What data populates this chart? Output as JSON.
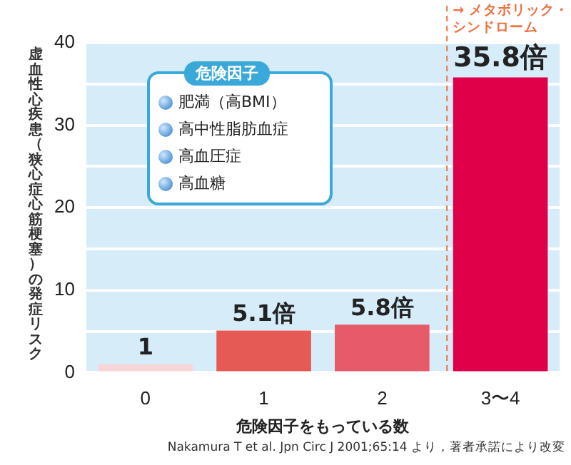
{
  "chart_data": {
    "type": "bar",
    "xlabel": "危険因子をもっている数",
    "ylabel": "虚血性心疾患（狭心症心筋梗塞）の発症リスク",
    "categories": [
      "0",
      "1",
      "2",
      "3〜4"
    ],
    "values": [
      1,
      5.1,
      5.8,
      35.8
    ],
    "colors": [
      "#f8d6d8",
      "#e55a55",
      "#e65a6a",
      "#e0004a"
    ],
    "value_labels": [
      "1",
      "5.1倍",
      "5.8倍",
      "35.8倍"
    ],
    "ylim": [
      0,
      40
    ],
    "yticks": [
      0,
      {
        "value": 5,
        "label": null
      },
      10,
      {
        "value": 15,
        "label": null
      },
      20,
      {
        "value": 25,
        "label": null
      },
      30,
      {
        "value": 35,
        "label": null
      },
      40
    ],
    "grid": "y",
    "ref_lines": [
      {
        "axis": "x",
        "value": "3〜4",
        "label": "→ メタボリック・シンドローム",
        "color": "#f07040",
        "line_style": "dashed"
      }
    ],
    "annotations": [
      "危険因子",
      "肥満（高BMI）",
      "高中性脂肪血症",
      "高血圧症",
      "高血糖",
      "Nakamura T et al. Jpn Circ J 2001;65:14 より，著者承諾により改変"
    ]
  }
}
